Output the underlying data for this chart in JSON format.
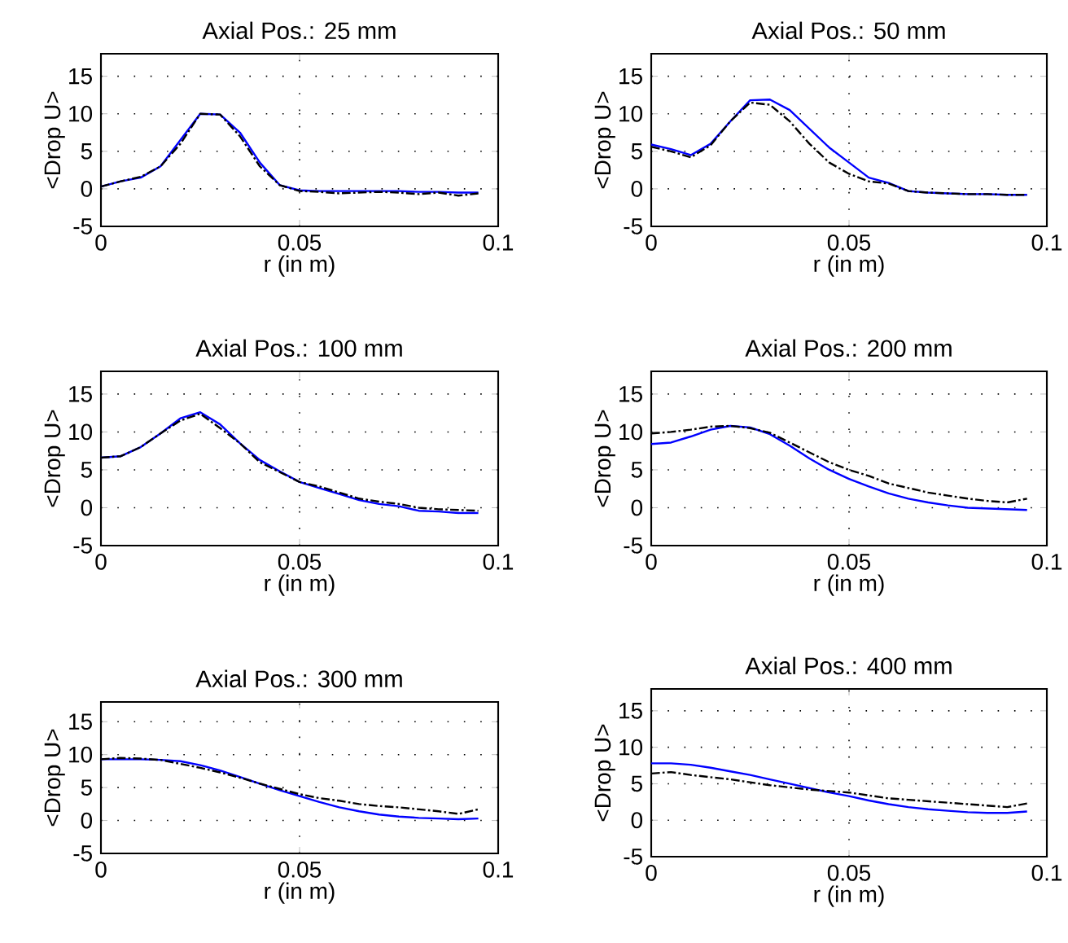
{
  "chart_data": [
    {
      "type": "line",
      "title": "Axial Pos.: 25 mm",
      "xlabel": "r (in m)",
      "ylabel": "<Drop U>",
      "xlim": [
        0,
        0.1
      ],
      "ylim": [
        -5,
        18
      ],
      "xticks": [
        0,
        0.05,
        0.1
      ],
      "yticks": [
        -5,
        0,
        5,
        10,
        15
      ],
      "grid": true,
      "x": [
        0,
        0.005,
        0.01,
        0.015,
        0.02,
        0.025,
        0.03,
        0.035,
        0.04,
        0.045,
        0.05,
        0.055,
        0.06,
        0.065,
        0.07,
        0.075,
        0.08,
        0.085,
        0.09,
        0.095
      ],
      "series": [
        {
          "color": "#000000",
          "line_style": "dashed",
          "values": [
            0.3,
            1.0,
            1.6,
            3.0,
            6.0,
            10.0,
            9.9,
            7.0,
            3.0,
            0.5,
            -0.3,
            -0.4,
            -0.6,
            -0.5,
            -0.4,
            -0.5,
            -0.7,
            -0.5,
            -0.9,
            -0.6
          ]
        },
        {
          "color": "#0000ff",
          "line_style": "solid",
          "values": [
            0.3,
            1.0,
            1.5,
            3.0,
            6.5,
            10.0,
            9.9,
            7.5,
            3.5,
            0.5,
            -0.2,
            -0.3,
            -0.3,
            -0.3,
            -0.3,
            -0.3,
            -0.4,
            -0.4,
            -0.5,
            -0.5
          ]
        }
      ]
    },
    {
      "type": "line",
      "title": "Axial Pos.: 50 mm",
      "xlabel": "r (in m)",
      "ylabel": "<Drop U>",
      "xlim": [
        0,
        0.1
      ],
      "ylim": [
        -5,
        18
      ],
      "xticks": [
        0,
        0.05,
        0.1
      ],
      "yticks": [
        -5,
        0,
        5,
        10,
        15
      ],
      "grid": true,
      "x": [
        0,
        0.005,
        0.01,
        0.015,
        0.02,
        0.025,
        0.03,
        0.035,
        0.04,
        0.045,
        0.05,
        0.055,
        0.06,
        0.065,
        0.07,
        0.075,
        0.08,
        0.085,
        0.09,
        0.095
      ],
      "series": [
        {
          "color": "#000000",
          "line_style": "dashed",
          "values": [
            5.6,
            5.0,
            4.2,
            5.8,
            9.0,
            11.5,
            11.2,
            9.0,
            6.0,
            3.5,
            2.0,
            1.0,
            0.7,
            -0.3,
            -0.5,
            -0.6,
            -0.7,
            -0.7,
            -0.8,
            -0.8
          ]
        },
        {
          "color": "#0000ff",
          "line_style": "solid",
          "values": [
            5.9,
            5.3,
            4.5,
            6.0,
            9.0,
            11.8,
            11.9,
            10.5,
            8.0,
            5.5,
            3.5,
            1.5,
            0.8,
            -0.3,
            -0.5,
            -0.6,
            -0.7,
            -0.7,
            -0.8,
            -0.8
          ]
        }
      ]
    },
    {
      "type": "line",
      "title": "Axial Pos.: 100 mm",
      "xlabel": "r (in m)",
      "ylabel": "<Drop U>",
      "xlim": [
        0,
        0.1
      ],
      "ylim": [
        -5,
        18
      ],
      "xticks": [
        0,
        0.05,
        0.1
      ],
      "yticks": [
        -5,
        0,
        5,
        10,
        15
      ],
      "grid": true,
      "x": [
        0,
        0.005,
        0.01,
        0.015,
        0.02,
        0.025,
        0.03,
        0.035,
        0.04,
        0.045,
        0.05,
        0.055,
        0.06,
        0.065,
        0.07,
        0.075,
        0.08,
        0.085,
        0.09,
        0.095
      ],
      "series": [
        {
          "color": "#000000",
          "line_style": "dashed",
          "values": [
            6.6,
            6.8,
            8.0,
            9.8,
            11.5,
            12.4,
            10.5,
            8.5,
            6.0,
            4.7,
            3.4,
            2.8,
            2.0,
            1.2,
            0.8,
            0.5,
            0.0,
            -0.2,
            -0.3,
            -0.4
          ]
        },
        {
          "color": "#0000ff",
          "line_style": "solid",
          "values": [
            6.6,
            6.8,
            8.0,
            9.8,
            11.8,
            12.6,
            11.0,
            8.5,
            6.3,
            4.8,
            3.4,
            2.6,
            1.8,
            1.0,
            0.5,
            0.2,
            -0.4,
            -0.5,
            -0.7,
            -0.7
          ]
        }
      ]
    },
    {
      "type": "line",
      "title": "Axial Pos.: 200 mm",
      "xlabel": "r (in m)",
      "ylabel": "<Drop U>",
      "xlim": [
        0,
        0.1
      ],
      "ylim": [
        -5,
        18
      ],
      "xticks": [
        0,
        0.05,
        0.1
      ],
      "yticks": [
        -5,
        0,
        5,
        10,
        15
      ],
      "grid": true,
      "x": [
        0,
        0.005,
        0.01,
        0.015,
        0.02,
        0.025,
        0.03,
        0.035,
        0.04,
        0.045,
        0.05,
        0.055,
        0.06,
        0.065,
        0.07,
        0.075,
        0.08,
        0.085,
        0.09,
        0.095
      ],
      "series": [
        {
          "color": "#000000",
          "line_style": "dashed",
          "values": [
            9.8,
            10.0,
            10.3,
            10.7,
            10.8,
            10.5,
            9.9,
            8.6,
            7.3,
            6.0,
            5.0,
            4.2,
            3.2,
            2.6,
            2.0,
            1.6,
            1.2,
            0.9,
            0.7,
            1.2
          ]
        },
        {
          "color": "#0000ff",
          "line_style": "solid",
          "values": [
            8.4,
            8.6,
            9.4,
            10.3,
            10.8,
            10.6,
            9.7,
            8.2,
            6.5,
            5.0,
            3.8,
            2.8,
            1.9,
            1.2,
            0.7,
            0.3,
            0.0,
            -0.1,
            -0.2,
            -0.3
          ]
        }
      ]
    },
    {
      "type": "line",
      "title": "Axial Pos.: 300 mm",
      "xlabel": "r (in m)",
      "ylabel": "<Drop U>",
      "xlim": [
        0,
        0.1
      ],
      "ylim": [
        -5,
        18
      ],
      "xticks": [
        0,
        0.05,
        0.1
      ],
      "yticks": [
        -5,
        0,
        5,
        10,
        15
      ],
      "grid": true,
      "x": [
        0,
        0.005,
        0.01,
        0.015,
        0.02,
        0.025,
        0.03,
        0.035,
        0.04,
        0.045,
        0.05,
        0.055,
        0.06,
        0.065,
        0.07,
        0.075,
        0.08,
        0.085,
        0.09,
        0.095
      ],
      "series": [
        {
          "color": "#000000",
          "line_style": "dashed",
          "values": [
            9.3,
            9.5,
            9.4,
            9.2,
            8.6,
            8.0,
            7.3,
            6.5,
            5.6,
            4.8,
            4.0,
            3.4,
            3.0,
            2.5,
            2.2,
            2.0,
            1.7,
            1.4,
            1.0,
            1.7
          ]
        },
        {
          "color": "#0000ff",
          "line_style": "solid",
          "values": [
            9.3,
            9.3,
            9.3,
            9.2,
            9.0,
            8.4,
            7.6,
            6.6,
            5.6,
            4.6,
            3.7,
            2.8,
            2.0,
            1.4,
            0.9,
            0.6,
            0.4,
            0.3,
            0.2,
            0.3
          ]
        }
      ]
    },
    {
      "type": "line",
      "title": "Axial Pos.: 400 mm",
      "xlabel": "r (in m)",
      "ylabel": "<Drop U>",
      "xlim": [
        0,
        0.1
      ],
      "ylim": [
        -5,
        18
      ],
      "xticks": [
        0,
        0.05,
        0.1
      ],
      "yticks": [
        -5,
        0,
        5,
        10,
        15
      ],
      "grid": true,
      "x": [
        0,
        0.005,
        0.01,
        0.015,
        0.02,
        0.025,
        0.03,
        0.035,
        0.04,
        0.045,
        0.05,
        0.055,
        0.06,
        0.065,
        0.07,
        0.075,
        0.08,
        0.085,
        0.09,
        0.095
      ],
      "series": [
        {
          "color": "#000000",
          "line_style": "dashed",
          "values": [
            6.4,
            6.6,
            6.2,
            5.9,
            5.6,
            5.2,
            4.8,
            4.5,
            4.2,
            4.0,
            3.8,
            3.4,
            3.0,
            2.8,
            2.6,
            2.4,
            2.2,
            2.0,
            1.8,
            2.3
          ]
        },
        {
          "color": "#0000ff",
          "line_style": "solid",
          "values": [
            7.8,
            7.8,
            7.6,
            7.2,
            6.7,
            6.2,
            5.6,
            5.0,
            4.4,
            3.8,
            3.3,
            2.7,
            2.2,
            1.8,
            1.5,
            1.3,
            1.1,
            1.0,
            1.0,
            1.2
          ]
        }
      ]
    }
  ]
}
